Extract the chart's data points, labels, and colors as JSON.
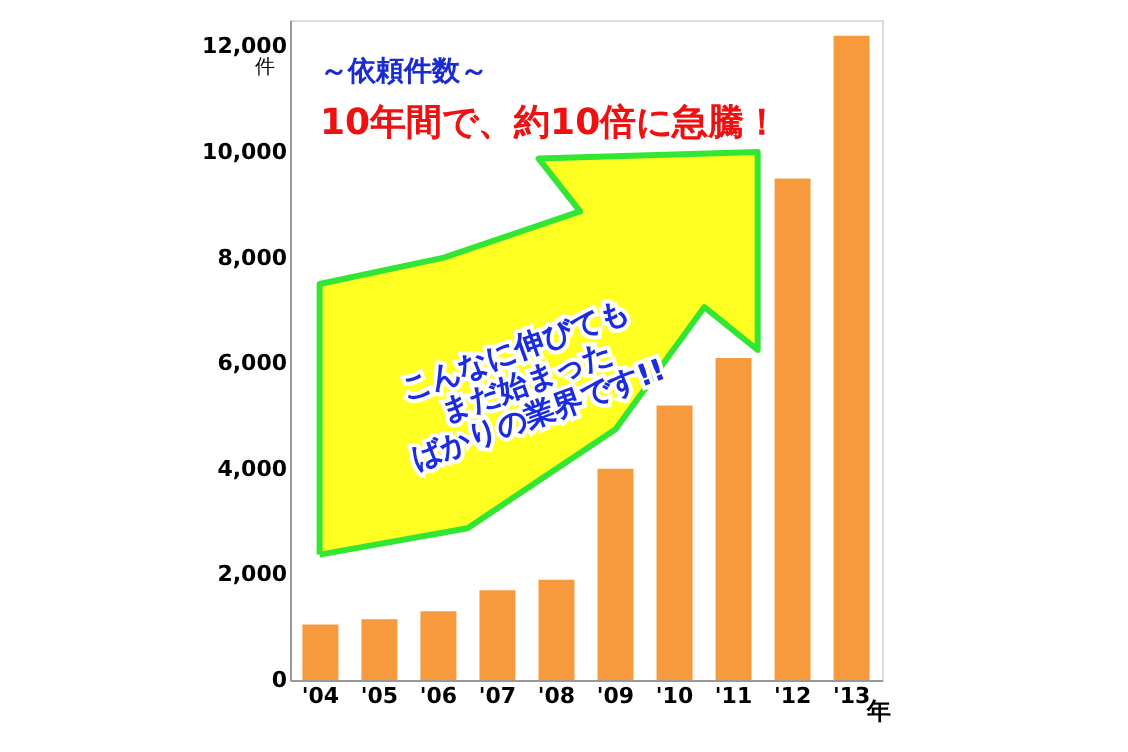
{
  "chart_data": {
    "type": "bar",
    "title": "～依頼件数～",
    "subtitle": "10年間で、約10倍に急騰！",
    "xlabel": "年",
    "ylabel": "件",
    "categories": [
      "'04",
      "'05",
      "'06",
      "'07",
      "'08",
      "'09",
      "'10",
      "'11",
      "'12",
      "'13"
    ],
    "values": [
      1050,
      1150,
      1300,
      1700,
      1900,
      4000,
      5200,
      6100,
      9500,
      12200
    ],
    "color": "#f79a3e",
    "ylim": [
      0,
      12500
    ],
    "yticks": [
      0,
      {
        "value": 2000,
        "label": "2,000"
      },
      {
        "value": 4000,
        "label": "4,000"
      },
      {
        "value": 6000,
        "label": "6,000"
      },
      {
        "value": 8000,
        "label": "8,000"
      },
      {
        "value": 10000,
        "label": "10,000"
      },
      {
        "value": 12000,
        "label": "12,000"
      }
    ],
    "grid": false,
    "annotations": [
      "こんなに伸びても\nまだ始まった\nばかりの業界です!!"
    ]
  }
}
